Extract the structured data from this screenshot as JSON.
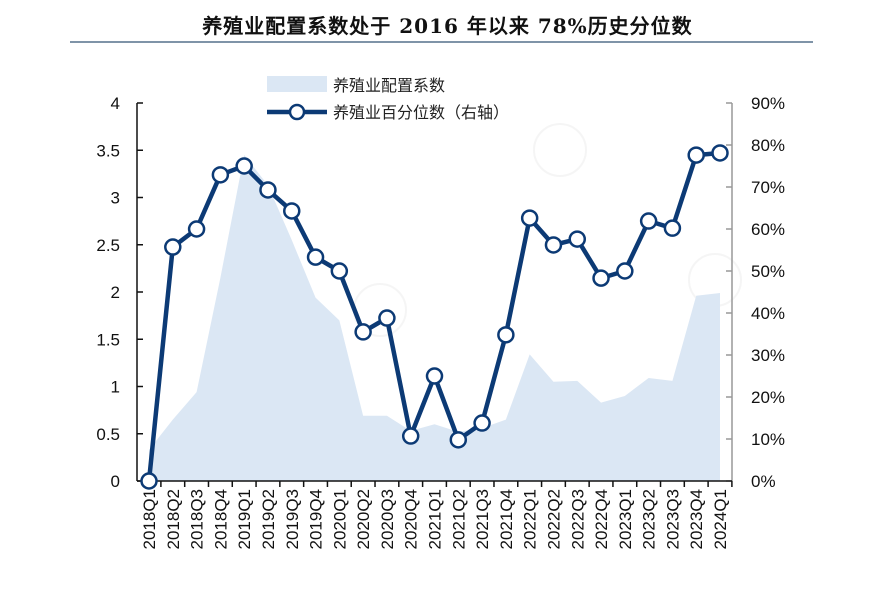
{
  "title": "养殖业配置系数处于 2016 年以来 78%历史分位数",
  "colors": {
    "area": "#dbe7f4",
    "line": "#0c3a75",
    "marker_fill": "#ffffff",
    "title_rule": "#7f94a8",
    "left_axis": "#111111",
    "right_axis": "#999999"
  },
  "legend": {
    "area_label": "养殖业配置系数",
    "line_label": "养殖业百分位数（右轴）"
  },
  "chart_data": {
    "type": "area+line",
    "title": "养殖业配置系数处于 2016 年以来 78%历史分位数",
    "xlabel": "",
    "ylabel_left": "",
    "ylabel_right": "",
    "ylim_left": [
      0,
      4
    ],
    "yticks_left": [
      "0",
      "0.5",
      "1",
      "1.5",
      "2",
      "2.5",
      "3",
      "3.5",
      "4"
    ],
    "ylim_right": [
      0,
      90
    ],
    "yticks_right": [
      "0%",
      "10%",
      "20%",
      "30%",
      "40%",
      "50%",
      "60%",
      "70%",
      "80%",
      "90%"
    ],
    "grid": false,
    "legend_position": "top-left inside",
    "categories": [
      "2018Q1",
      "2018Q2",
      "2018Q3",
      "2018Q4",
      "2019Q1",
      "2019Q2",
      "2019Q3",
      "2019Q4",
      "2020Q1",
      "2020Q2",
      "2020Q3",
      "2020Q4",
      "2021Q1",
      "2021Q2",
      "2021Q3",
      "2021Q4",
      "2022Q1",
      "2022Q2",
      "2022Q3",
      "2022Q4",
      "2023Q1",
      "2023Q2",
      "2023Q3",
      "2023Q4",
      "2024Q1"
    ],
    "series": [
      {
        "name": "养殖业配置系数",
        "type": "area",
        "axis": "left",
        "values": [
          0.33,
          0.65,
          0.94,
          2.15,
          3.45,
          3.13,
          2.55,
          1.94,
          1.7,
          0.69,
          0.69,
          0.53,
          0.6,
          0.52,
          0.56,
          0.65,
          1.34,
          1.05,
          1.06,
          0.83,
          0.9,
          1.09,
          1.06,
          1.96,
          1.99
        ]
      },
      {
        "name": "养殖业百分位数（右轴）",
        "type": "line",
        "axis": "right",
        "values": [
          0,
          55.7,
          60.0,
          72.9,
          75.0,
          69.3,
          64.3,
          53.3,
          50.0,
          35.5,
          38.8,
          10.7,
          25.0,
          9.8,
          13.8,
          34.8,
          62.6,
          56.2,
          57.6,
          48.3,
          50.0,
          61.9,
          60.2,
          77.6,
          78.1
        ]
      }
    ]
  }
}
